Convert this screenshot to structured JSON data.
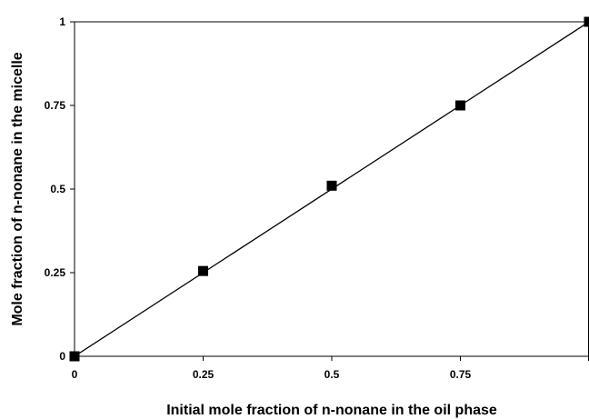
{
  "chart_data": {
    "type": "line",
    "title": "",
    "xlabel": "Initial mole fraction of n-nonane in the oil phase",
    "ylabel": "Mole fraction of n-nonane in the micelle",
    "xlim": [
      0,
      1
    ],
    "ylim": [
      0,
      1
    ],
    "x_ticks": [
      "0",
      "0.25",
      "0.5",
      "0.75"
    ],
    "y_ticks": [
      "0",
      "0.25",
      "0.5",
      "0.75",
      "1"
    ],
    "grid": false,
    "legend": "none",
    "series": [
      {
        "marker": "square",
        "color": "#000000",
        "points": [
          {
            "x": 0,
            "y": 0
          },
          {
            "x": 0.25,
            "y": 0.255
          },
          {
            "x": 0.5,
            "y": 0.51
          },
          {
            "x": 0.75,
            "y": 0.75
          },
          {
            "x": 1,
            "y": 1
          }
        ]
      }
    ],
    "fit_line": {
      "x": [
        0,
        1
      ],
      "y": [
        0,
        1
      ],
      "color": "#000000"
    }
  }
}
